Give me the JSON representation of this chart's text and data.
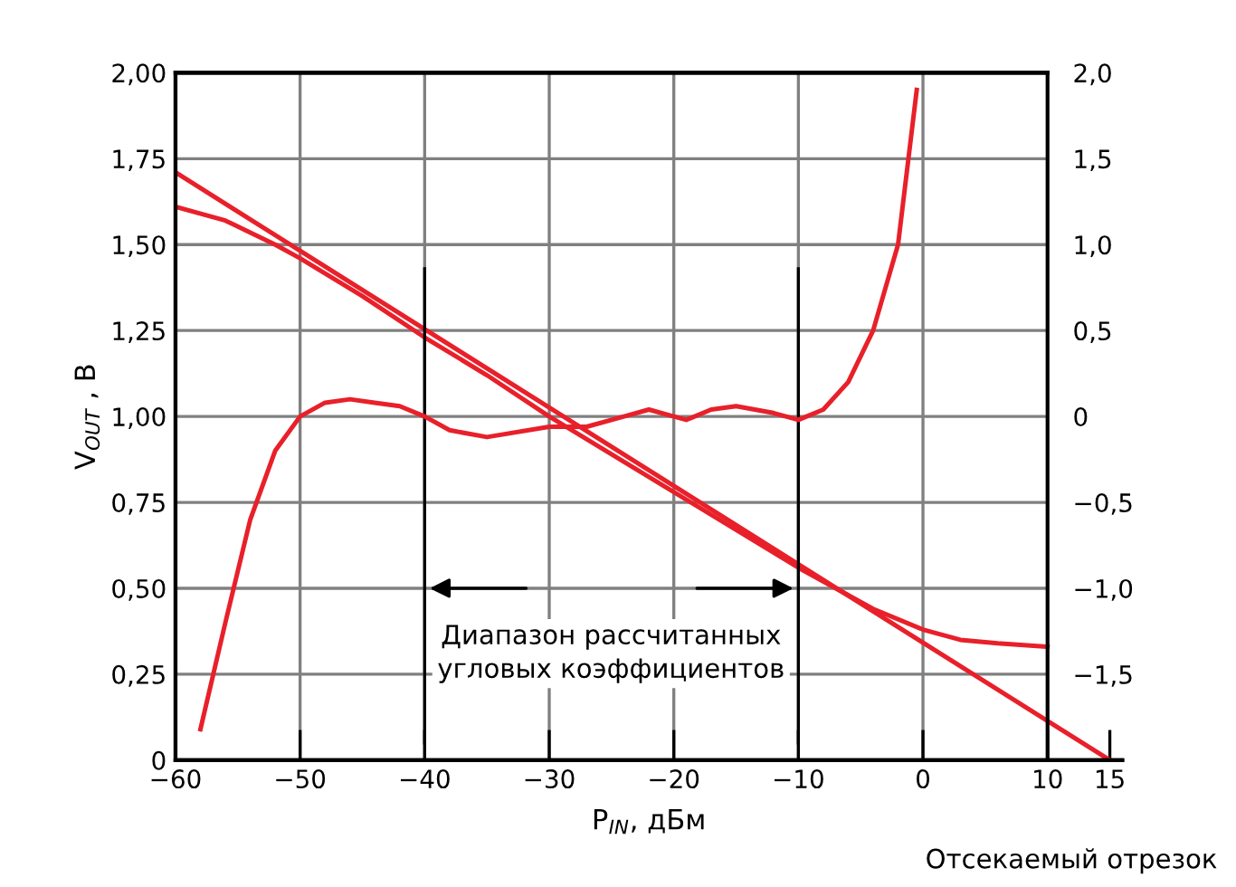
{
  "chart_data": {
    "type": "line",
    "xlabel": "P$_{IN}$, дБм",
    "ylabel": "V$_{OUT}$ , В",
    "xlim": [
      -60,
      16
    ],
    "xticks": [
      {
        "value": -60,
        "label": "−60"
      },
      {
        "value": -50,
        "label": "−50"
      },
      {
        "value": -40,
        "label": "−40"
      },
      {
        "value": -30,
        "label": "−30"
      },
      {
        "value": -20,
        "label": "−20"
      },
      {
        "value": -10,
        "label": "−10"
      },
      0,
      10,
      {
        "value": 15,
        "label": "15"
      }
    ],
    "ylim": [
      0,
      2
    ],
    "yticks": [
      0,
      {
        "value": 0.25,
        "label": "0,25"
      },
      {
        "value": 0.5,
        "label": "0,50"
      },
      {
        "value": 0.75,
        "label": "0,75"
      },
      {
        "value": 1,
        "label": "1,00"
      },
      {
        "value": 1.25,
        "label": "1,25"
      },
      {
        "value": 1.5,
        "label": "1,50"
      },
      {
        "value": 1.75,
        "label": "1,75"
      },
      {
        "value": 2,
        "label": "2,00"
      }
    ],
    "y2lim": [
      -2,
      2
    ],
    "y2ticks": [
      {
        "value": -1.5,
        "label": "−1,5"
      },
      {
        "value": -1,
        "label": "−1,0"
      },
      {
        "value": -0.5,
        "label": "−0,5"
      },
      0,
      {
        "value": 0.5,
        "label": "0,5"
      },
      {
        "value": 1,
        "label": "1,0"
      },
      {
        "value": 1.5,
        "label": "1,5"
      },
      {
        "value": 2,
        "label": "2,0"
      }
    ],
    "grid": true,
    "marker": "none",
    "line_style": "solid",
    "series": [
      {
        "color": "#e8202a",
        "x": [
          -60,
          -56,
          -52,
          -50,
          -45,
          -40,
          -35,
          -30,
          -25,
          -20,
          -15,
          -10,
          -7,
          -4,
          0,
          3,
          6,
          10
        ],
        "values": [
          1.61,
          1.57,
          1.5,
          1.46,
          1.35,
          1.23,
          1.12,
          1.0,
          0.89,
          0.78,
          0.67,
          0.56,
          0.5,
          0.44,
          0.38,
          0.35,
          0.34,
          0.33
        ]
      },
      {
        "color": "#e8202a",
        "x": [
          -60,
          15
        ],
        "values": [
          1.71,
          0
        ]
      },
      {
        "color": "#e8202a",
        "axis": "y2",
        "x": [
          -58,
          -56,
          -54,
          -52,
          -50,
          -48,
          -46,
          -44,
          -42,
          -40,
          -38,
          -35,
          -30,
          -27,
          -24,
          -22,
          -20,
          -19,
          -17,
          -15,
          -12,
          -10,
          -8,
          -6,
          -4,
          -2,
          -1,
          -0.5
        ],
        "values": [
          -1.82,
          -1.2,
          -0.6,
          -0.2,
          0,
          0.08,
          0.1,
          0.08,
          0.06,
          0,
          -0.08,
          -0.12,
          -0.06,
          -0.06,
          0,
          0.04,
          0,
          -0.02,
          0.04,
          0.06,
          0.02,
          -0.02,
          0.04,
          0.2,
          0.5,
          1.0,
          1.6,
          1.9
        ]
      }
    ],
    "ref_lines": [
      {
        "axis": "x",
        "value": -40,
        "color": "#000000"
      },
      {
        "axis": "x",
        "value": -10,
        "color": "#000000"
      }
    ],
    "annotations": [
      "Диапазон рассчитанных\nугловых коэффициентов",
      "Отсекаемый отрезок"
    ]
  }
}
